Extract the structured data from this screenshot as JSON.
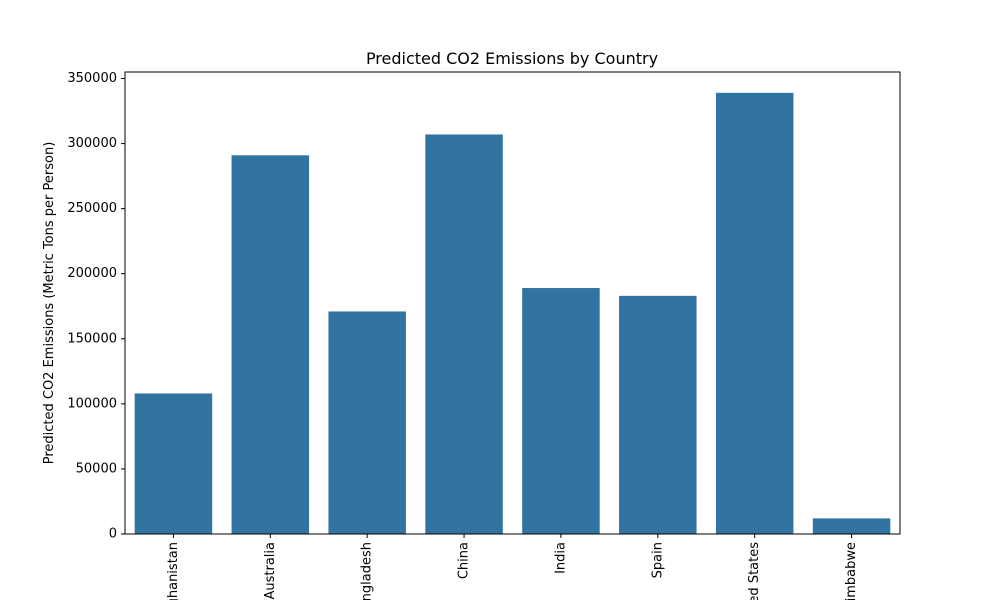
{
  "chart_data": {
    "type": "bar",
    "title": "Predicted CO2 Emissions by Country",
    "xlabel": "",
    "ylabel": "Predicted CO2 Emissions (Metric Tons per Person)",
    "categories": [
      "Afghanistan",
      "Australia",
      "Bangladesh",
      "China",
      "India",
      "Spain",
      "United States",
      "Zimbabwe"
    ],
    "values": [
      108000,
      291000,
      171000,
      307000,
      189000,
      183000,
      339000,
      12000
    ],
    "ylim": [
      0,
      355000
    ],
    "yticks": [
      0,
      50000,
      100000,
      150000,
      200000,
      250000,
      300000,
      350000
    ],
    "ytick_labels": [
      "0",
      "50000",
      "100000",
      "150000",
      "200000",
      "250000",
      "300000",
      "350000"
    ],
    "grid": false,
    "legend": "none",
    "bar_color": "#3274a1",
    "x_tick_rotation": 90
  }
}
